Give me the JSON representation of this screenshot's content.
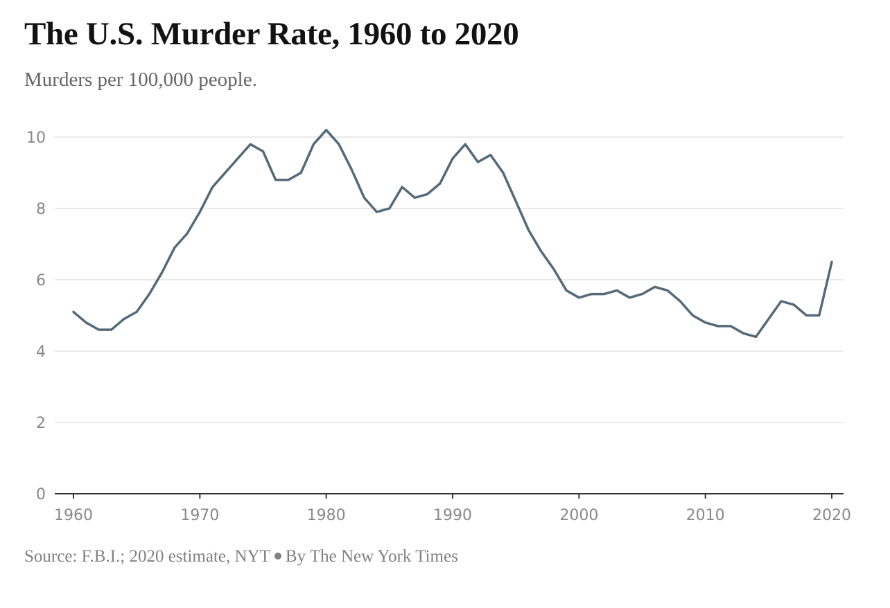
{
  "chart_data": {
    "type": "line",
    "title": "The U.S. Murder Rate, 1960 to 2020",
    "subtitle": "Murders per 100,000 people.",
    "xlabel": "",
    "ylabel": "",
    "xlim": [
      1960,
      2020
    ],
    "ylim": [
      0,
      10
    ],
    "grid": true,
    "x_ticks": [
      "1960",
      "1970",
      "1980",
      "1990",
      "2000",
      "2010",
      "2020"
    ],
    "y_ticks": [
      "0",
      "2",
      "4",
      "6",
      "8",
      "10"
    ],
    "series": [
      {
        "x": [
          1960,
          1961,
          1962,
          1963,
          1964,
          1965,
          1966,
          1967,
          1968,
          1969,
          1970,
          1971,
          1972,
          1973,
          1974,
          1975,
          1976,
          1977,
          1978,
          1979,
          1980,
          1981,
          1982,
          1983,
          1984,
          1985,
          1986,
          1987,
          1988,
          1989,
          1990,
          1991,
          1992,
          1993,
          1994,
          1995,
          1996,
          1997,
          1998,
          1999,
          2000,
          2001,
          2002,
          2003,
          2004,
          2005,
          2006,
          2007,
          2008,
          2009,
          2010,
          2011,
          2012,
          2013,
          2014,
          2015,
          2016,
          2017,
          2018,
          2019,
          2020
        ],
        "y": [
          5.1,
          4.8,
          4.6,
          4.6,
          4.9,
          5.1,
          5.6,
          6.2,
          6.9,
          7.3,
          7.9,
          8.6,
          9.0,
          9.4,
          9.8,
          9.6,
          8.8,
          8.8,
          9.0,
          9.8,
          10.2,
          9.8,
          9.1,
          8.3,
          7.9,
          8.0,
          8.6,
          8.3,
          8.4,
          8.7,
          9.4,
          9.8,
          9.3,
          9.5,
          9.0,
          8.2,
          7.4,
          6.8,
          6.3,
          5.7,
          5.5,
          5.6,
          5.6,
          5.7,
          5.5,
          5.6,
          5.8,
          5.7,
          5.4,
          5.0,
          4.8,
          4.7,
          4.7,
          4.5,
          4.4,
          4.9,
          5.4,
          5.3,
          5.0,
          5.0,
          6.5
        ],
        "color": "#546a78"
      }
    ]
  },
  "footer": {
    "source": "Source: F.B.I.; 2020 estimate, NYT",
    "byline": "By The New York Times"
  },
  "colors": {
    "line": "#546a78",
    "grid": "#e2e2e2",
    "axis": "#333333"
  }
}
